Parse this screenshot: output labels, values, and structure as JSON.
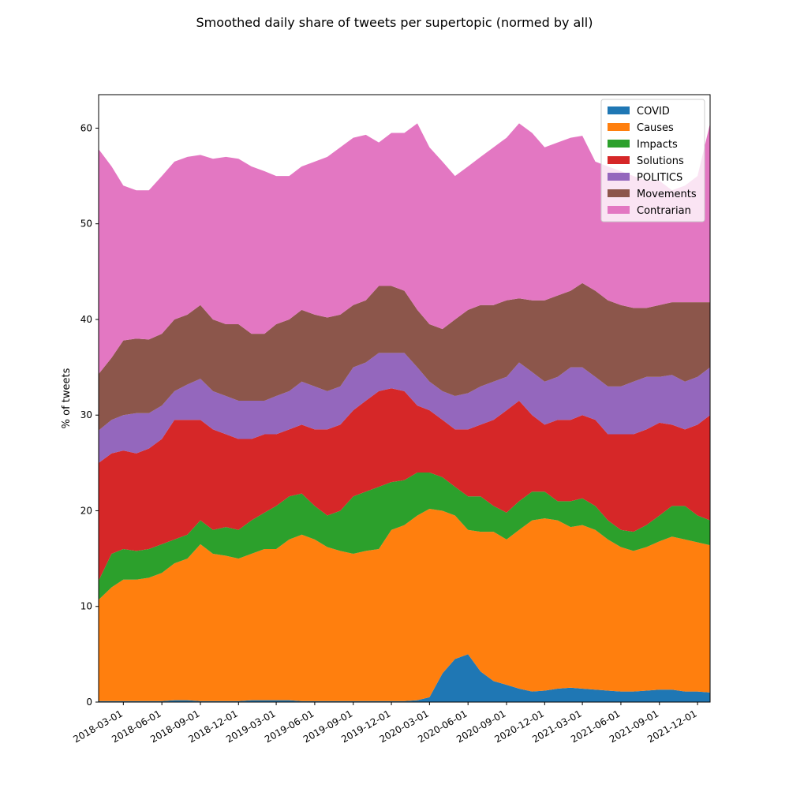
{
  "chart_data": {
    "type": "area",
    "stacked": true,
    "title": "Smoothed daily share of tweets per supertopic (normed by all)",
    "xlabel": "",
    "ylabel": "% of tweets",
    "xlim": [
      "2018-01-01",
      "2021-12-31"
    ],
    "ylim": [
      0,
      63.5
    ],
    "x_ticks": [
      "2018-03-01",
      "2018-06-01",
      "2018-09-01",
      "2018-12-01",
      "2019-03-01",
      "2019-06-01",
      "2019-09-01",
      "2019-12-01",
      "2020-03-01",
      "2020-06-01",
      "2020-09-01",
      "2020-12-01",
      "2021-03-01",
      "2021-06-01",
      "2021-09-01",
      "2021-12-01"
    ],
    "y_ticks": [
      0,
      10,
      20,
      30,
      40,
      50,
      60
    ],
    "grid": false,
    "legend_position": "top-right",
    "x": [
      "2018-01-01",
      "2018-02-01",
      "2018-03-01",
      "2018-04-01",
      "2018-05-01",
      "2018-06-01",
      "2018-07-01",
      "2018-08-01",
      "2018-09-01",
      "2018-10-01",
      "2018-11-01",
      "2018-12-01",
      "2019-01-01",
      "2019-02-01",
      "2019-03-01",
      "2019-04-01",
      "2019-05-01",
      "2019-06-01",
      "2019-07-01",
      "2019-08-01",
      "2019-09-01",
      "2019-10-01",
      "2019-11-01",
      "2019-12-01",
      "2020-01-01",
      "2020-02-01",
      "2020-03-01",
      "2020-04-01",
      "2020-05-01",
      "2020-06-01",
      "2020-07-01",
      "2020-08-01",
      "2020-09-01",
      "2020-10-01",
      "2020-11-01",
      "2020-12-01",
      "2021-01-01",
      "2021-02-01",
      "2021-03-01",
      "2021-04-01",
      "2021-05-01",
      "2021-06-01",
      "2021-07-01",
      "2021-08-01",
      "2021-09-01",
      "2021-10-01",
      "2021-11-01",
      "2021-12-01",
      "2021-12-31"
    ],
    "series": [
      {
        "name": "COVID",
        "color": "#1f77b4",
        "cumulative": [
          0.1,
          0.1,
          0.1,
          0.1,
          0.1,
          0.1,
          0.2,
          0.2,
          0.1,
          0.1,
          0.1,
          0.1,
          0.2,
          0.2,
          0.2,
          0.2,
          0.1,
          0.1,
          0.1,
          0.1,
          0.1,
          0.1,
          0.1,
          0.1,
          0.1,
          0.2,
          0.5,
          3.0,
          4.5,
          5.0,
          3.2,
          2.2,
          1.8,
          1.4,
          1.1,
          1.2,
          1.4,
          1.5,
          1.4,
          1.3,
          1.2,
          1.1,
          1.1,
          1.2,
          1.3,
          1.3,
          1.1,
          1.1,
          1.0
        ]
      },
      {
        "name": "Causes",
        "color": "#ff7f0e",
        "cumulative": [
          10.7,
          12.0,
          12.8,
          12.8,
          13.0,
          13.5,
          14.5,
          15.0,
          16.5,
          15.5,
          15.3,
          15.0,
          15.5,
          16.0,
          16.0,
          17.0,
          17.5,
          17.0,
          16.2,
          15.8,
          15.5,
          15.8,
          16.0,
          18.0,
          18.5,
          19.5,
          20.2,
          20.0,
          19.5,
          18.0,
          17.8,
          17.8,
          17.0,
          18.0,
          19.0,
          19.2,
          19.0,
          18.3,
          18.5,
          18.0,
          17.0,
          16.2,
          15.8,
          16.2,
          16.8,
          17.3,
          17.0,
          16.7,
          16.4
        ]
      },
      {
        "name": "Impacts",
        "color": "#2ca02c",
        "cumulative": [
          12.7,
          15.5,
          16.0,
          15.8,
          16.0,
          16.5,
          17.0,
          17.5,
          19.0,
          18.0,
          18.3,
          18.0,
          19.0,
          19.8,
          20.5,
          21.5,
          21.8,
          20.5,
          19.5,
          20.0,
          21.5,
          22.0,
          22.5,
          23.0,
          23.2,
          24.0,
          24.0,
          23.5,
          22.5,
          21.5,
          21.5,
          20.5,
          19.8,
          21.0,
          22.0,
          22.0,
          21.0,
          21.0,
          21.3,
          20.5,
          19.0,
          18.0,
          17.8,
          18.5,
          19.5,
          20.5,
          20.5,
          19.5,
          19.0
        ]
      },
      {
        "name": "Solutions",
        "color": "#d62728",
        "cumulative": [
          25.0,
          26.0,
          26.3,
          26.0,
          26.5,
          27.5,
          29.5,
          29.5,
          29.5,
          28.5,
          28.0,
          27.5,
          27.5,
          28.0,
          28.0,
          28.5,
          29.0,
          28.5,
          28.5,
          29.0,
          30.5,
          31.5,
          32.5,
          32.8,
          32.5,
          31.0,
          30.5,
          29.5,
          28.5,
          28.5,
          29.0,
          29.5,
          30.5,
          31.5,
          30.0,
          29.0,
          29.5,
          29.5,
          30.0,
          29.5,
          28.0,
          28.0,
          28.0,
          28.5,
          29.2,
          29.0,
          28.5,
          29.0,
          30.0
        ]
      },
      {
        "name": "POLITICS",
        "color": "#9467bd",
        "cumulative": [
          28.4,
          29.5,
          30.0,
          30.2,
          30.2,
          31.0,
          32.5,
          33.2,
          33.8,
          32.5,
          32.0,
          31.5,
          31.5,
          31.5,
          32.0,
          32.5,
          33.5,
          33.0,
          32.5,
          33.0,
          35.0,
          35.5,
          36.5,
          36.5,
          36.5,
          35.0,
          33.5,
          32.5,
          32.0,
          32.3,
          33.0,
          33.5,
          34.0,
          35.5,
          34.5,
          33.5,
          34.0,
          35.0,
          35.0,
          34.0,
          33.0,
          33.0,
          33.5,
          34.0,
          34.0,
          34.2,
          33.5,
          34.0,
          35.0
        ]
      },
      {
        "name": "Movements",
        "color": "#8c564b",
        "cumulative": [
          34.3,
          36.0,
          37.8,
          38.0,
          37.9,
          38.5,
          40.0,
          40.5,
          41.5,
          40.0,
          39.5,
          39.5,
          38.5,
          38.5,
          39.5,
          40.0,
          41.0,
          40.5,
          40.2,
          40.5,
          41.5,
          42.0,
          43.5,
          43.5,
          43.0,
          41.0,
          39.5,
          39.0,
          40.0,
          41.0,
          41.5,
          41.5,
          42.0,
          42.2,
          42.0,
          42.0,
          42.5,
          43.0,
          43.8,
          43.0,
          42.0,
          41.5,
          41.2,
          41.2,
          41.5,
          41.8,
          41.8,
          41.8,
          41.8
        ]
      },
      {
        "name": "Contrarian",
        "color": "#e377c2",
        "cumulative": [
          57.8,
          56.0,
          54.0,
          53.5,
          53.5,
          55.0,
          56.5,
          57.0,
          57.2,
          56.8,
          57.0,
          56.8,
          56.0,
          55.5,
          55.0,
          55.0,
          56.0,
          56.5,
          57.0,
          58.0,
          59.0,
          59.3,
          58.5,
          59.5,
          59.5,
          60.5,
          58.0,
          56.5,
          55.0,
          56.0,
          57.0,
          58.0,
          59.0,
          60.5,
          59.5,
          58.0,
          58.5,
          59.0,
          59.2,
          56.5,
          56.0,
          55.5,
          55.0,
          54.5,
          54.5,
          53.5,
          54.0,
          55.0,
          60.5
        ]
      }
    ]
  }
}
